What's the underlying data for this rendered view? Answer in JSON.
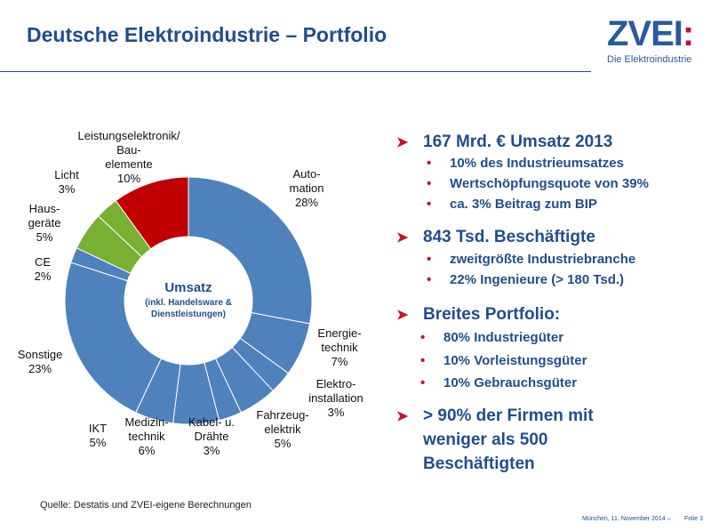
{
  "header": {
    "title": "Deutsche Elektroindustrie – Portfolio",
    "logo_text": "ZVEI",
    "logo_colon": ":",
    "logo_sub": "Die Elektroindustrie"
  },
  "chart_data": {
    "type": "pie",
    "style": "donut",
    "center_label": "Umsatz",
    "center_sub": [
      "(inkl. Handelsware &",
      "Dienstleistungen)"
    ],
    "unit": "%",
    "slices": [
      {
        "label_lines": [
          "Auto-",
          "mation"
        ],
        "value": 28,
        "value_label": "28%",
        "color": "#4f81bd"
      },
      {
        "label_lines": [
          "Energie-",
          "technik"
        ],
        "value": 7,
        "value_label": "7%",
        "color": "#4f81bd"
      },
      {
        "label_lines": [
          "Elektro-",
          "installation"
        ],
        "value": 3,
        "value_label": "3%",
        "color": "#4f81bd"
      },
      {
        "label_lines": [
          "Fahrzeug-",
          "elektrik"
        ],
        "value": 5,
        "value_label": "5%",
        "color": "#4f81bd"
      },
      {
        "label_lines": [
          "Kabel- u.",
          "Drähte"
        ],
        "value": 3,
        "value_label": "3%",
        "color": "#4f81bd"
      },
      {
        "label_lines": [
          "Medizin-",
          "technik"
        ],
        "value": 6,
        "value_label": "6%",
        "color": "#4f81bd"
      },
      {
        "label_lines": [
          "IKT"
        ],
        "value": 5,
        "value_label": "5%",
        "color": "#4f81bd"
      },
      {
        "label_lines": [
          "Sonstige"
        ],
        "value": 23,
        "value_label": "23%",
        "color": "#4f81bd"
      },
      {
        "label_lines": [
          "CE"
        ],
        "value": 2,
        "value_label": "2%",
        "color": "#4f81bd"
      },
      {
        "label_lines": [
          "Haus-",
          "geräte"
        ],
        "value": 5,
        "value_label": "5%",
        "color": "#77b033"
      },
      {
        "label_lines": [
          "Licht"
        ],
        "value": 3,
        "value_label": "3%",
        "color": "#77b033"
      },
      {
        "label_lines": [
          "Leistungselektronik/",
          "Bau-",
          "elemente"
        ],
        "value": 10,
        "value_label": "10%",
        "color": "#c00000"
      }
    ]
  },
  "points": [
    {
      "title": [
        "167 Mrd. € Umsatz 2013"
      ],
      "items": [
        "10% des Industrieumsatzes",
        "Wertschöpfungsquote von 39%",
        "ca. 3% Beitrag zum BIP"
      ]
    },
    {
      "title": [
        "843 Tsd. Beschäftigte"
      ],
      "items": [
        "zweitgrößte Industriebranche",
        "22% Ingenieure (> 180 Tsd.)"
      ]
    },
    {
      "title": [
        "Breites Portfolio:"
      ],
      "items": [
        "80% Industriegüter",
        "10% Vorleistungsgüter",
        "10% Gebrauchsgüter"
      ]
    },
    {
      "title": [
        "> 90% der Firmen mit",
        "weniger als 500",
        "Beschäftigten"
      ],
      "items": []
    }
  ],
  "footer": {
    "source": "Quelle: Destatis und ZVEI-eigene Berechnungen",
    "date": "München, 11. November 2014 –",
    "slide": "Folie 3"
  },
  "colors": {
    "title": "#1f4e8c",
    "accent": "#c8102e"
  }
}
